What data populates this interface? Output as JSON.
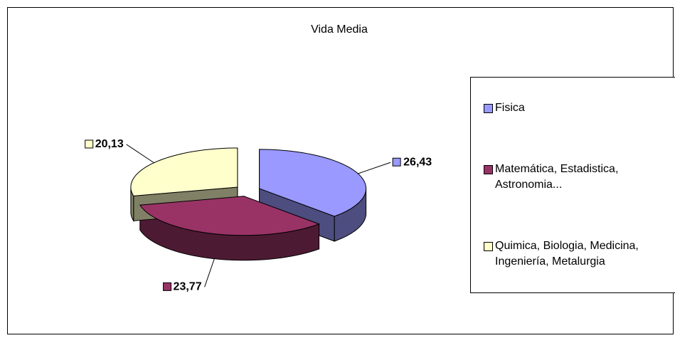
{
  "chart_data": {
    "type": "pie3d",
    "title": "Vida Media",
    "categories": [
      "Fisica",
      "Matemática, Estadistica, Astronomia...",
      "Quimica, Biologia, Medicina, Ingeniería, Metalurgia"
    ],
    "values": [
      26.43,
      23.77,
      20.13
    ],
    "value_labels": [
      "26,43",
      "23,77",
      "20,13"
    ],
    "colors": [
      "#9999ff",
      "#993366",
      "#ffffcc"
    ],
    "legend": "right"
  }
}
